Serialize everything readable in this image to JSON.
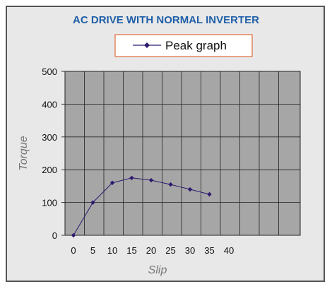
{
  "chart_data": {
    "type": "line",
    "title": "AC DRIVE WITH NORMAL INVERTER",
    "xlabel": "Slip",
    "ylabel": "Torque",
    "x_ticks": [
      "0",
      "5",
      "10",
      "15",
      "20",
      "25",
      "30",
      "35",
      "40"
    ],
    "y_ticks": [
      "0",
      "100",
      "200",
      "300",
      "400",
      "500"
    ],
    "xlim": [
      0,
      55
    ],
    "ylim": [
      0,
      500
    ],
    "grid": true,
    "legend_position": "top-center",
    "series": [
      {
        "name": "Peak graph",
        "color": "#2e1a6e",
        "x": [
          0,
          5,
          10,
          15,
          20,
          25,
          30,
          35
        ],
        "y": [
          0,
          100,
          160,
          175,
          168,
          155,
          140,
          125
        ]
      }
    ],
    "colors": {
      "title": "#1f5fa8",
      "plot_background": "#a6a6a6",
      "grid": "#222222",
      "frame_background": "#e8e8e8",
      "legend_border": "#e06a3a"
    }
  }
}
